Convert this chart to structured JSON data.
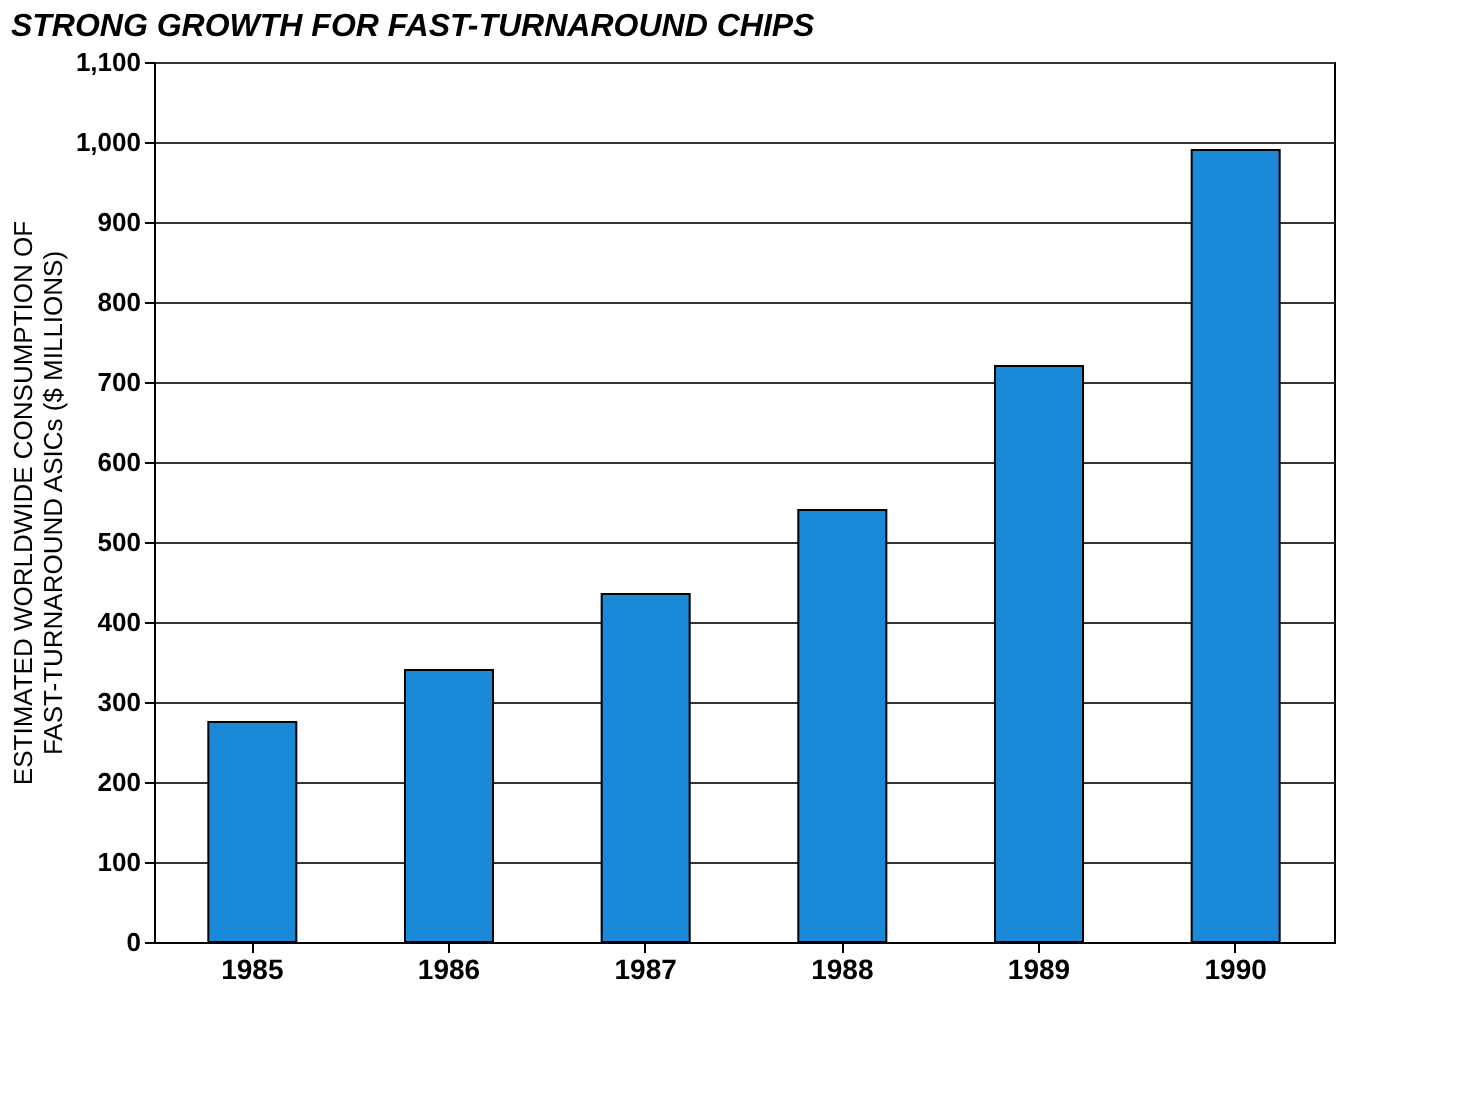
{
  "chart_data": {
    "type": "bar",
    "title": "STRONG GROWTH FOR FAST-TURNAROUND CHIPS",
    "ylabel": "ESTIMATED WORLDWIDE CONSUMPTION OF\nFAST-TURNAROUND ASICs ($ MILLIONS)",
    "categories": [
      "1985",
      "1986",
      "1987",
      "1988",
      "1989",
      "1990"
    ],
    "values": [
      275,
      340,
      435,
      540,
      720,
      990
    ],
    "color": "#1a8ad8",
    "ylim": [
      0,
      1100
    ],
    "yticks": [
      0,
      100,
      200,
      300,
      400,
      500,
      600,
      700,
      800,
      900,
      {
        "value": 1000,
        "label": "1,000"
      },
      {
        "value": 1100,
        "label": "1,100"
      }
    ],
    "grid": "y"
  }
}
